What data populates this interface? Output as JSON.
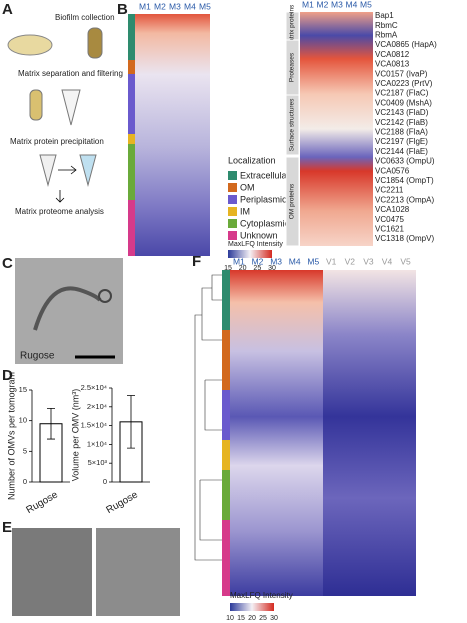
{
  "panel_letters": [
    "A",
    "B",
    "C",
    "D",
    "E",
    "F"
  ],
  "panel_a": {
    "steps": [
      "Biofilm collection",
      "Matrix separation and filtering",
      "Matrix protein precipitation",
      "Matrix proteome analysis"
    ]
  },
  "panel_b": {
    "columns": [
      "M1",
      "M2",
      "M3",
      "M4",
      "M5"
    ],
    "localization": {
      "title": "Localization",
      "items": [
        {
          "name": "Extracellular",
          "color": "#2e8b6e"
        },
        {
          "name": "OM",
          "color": "#d2691e"
        },
        {
          "name": "Periplasmic",
          "color": "#6a5acd"
        },
        {
          "name": "IM",
          "color": "#e6b422"
        },
        {
          "name": "Cytoplasmic",
          "color": "#6aaa3a"
        },
        {
          "name": "Unknown",
          "color": "#d63a8a"
        }
      ]
    },
    "colorbar": {
      "title": "MaxLFQ Intensity",
      "ticks": [
        15,
        20,
        25,
        30
      ]
    },
    "groups": [
      "Matrix proteins",
      "Proteases",
      "Surface structures",
      "OM proteins"
    ],
    "proteins": [
      "Bap1",
      "RbmC",
      "RbmA",
      "VCA0865 (HapA)",
      "VCA0812",
      "VCA0813",
      "VC0157 (IvaP)",
      "VCA0223 (PrtV)",
      "VC2187 (FlaC)",
      "VC0409 (MshA)",
      "VC2143 (FlaD)",
      "VC2142 (FlaB)",
      "VC2188 (FlaA)",
      "VC2197 (FlgE)",
      "VC2144 (FlaE)",
      "VC0633 (OmpU)",
      "VCA0576",
      "VC1854 (OmpT)",
      "VC2211",
      "VC2213 (OmpA)",
      "VCA1028",
      "VC0475",
      "VC1621",
      "VC1318 (OmpV)"
    ]
  },
  "panel_c": {
    "label": "Rugose"
  },
  "panel_d": {
    "charts": [
      {
        "type": "bar",
        "ylabel": "Number of OMVs per tomogram",
        "categories": [
          "Rugose"
        ],
        "values": [
          9.5
        ],
        "errors": [
          2.5
        ],
        "ylim": [
          0,
          15
        ],
        "yticks": [
          0,
          5,
          10,
          15
        ]
      },
      {
        "type": "bar",
        "ylabel": "Volume per OMV (nm³)",
        "categories": [
          "Rugose"
        ],
        "values": [
          16000
        ],
        "errors": [
          7000
        ],
        "ylim": [
          0,
          25000
        ],
        "yticks": [
          0,
          {
            "value": 5000,
            "label": "5×10³"
          },
          {
            "value": 10000,
            "label": "1×10⁴"
          },
          {
            "value": 15000,
            "label": "1.5×10⁴"
          },
          {
            "value": 20000,
            "label": "2×10⁴"
          },
          {
            "value": 25000,
            "label": "2.5×10⁴"
          }
        ]
      }
    ]
  },
  "panel_f": {
    "columns": [
      "M1",
      "M2",
      "M3",
      "M4",
      "M5",
      "V1",
      "V2",
      "V3",
      "V4",
      "V5"
    ],
    "colorbar": {
      "title": "MaxLFQ Intensity",
      "ticks": [
        10,
        15,
        20,
        25,
        30
      ]
    }
  }
}
